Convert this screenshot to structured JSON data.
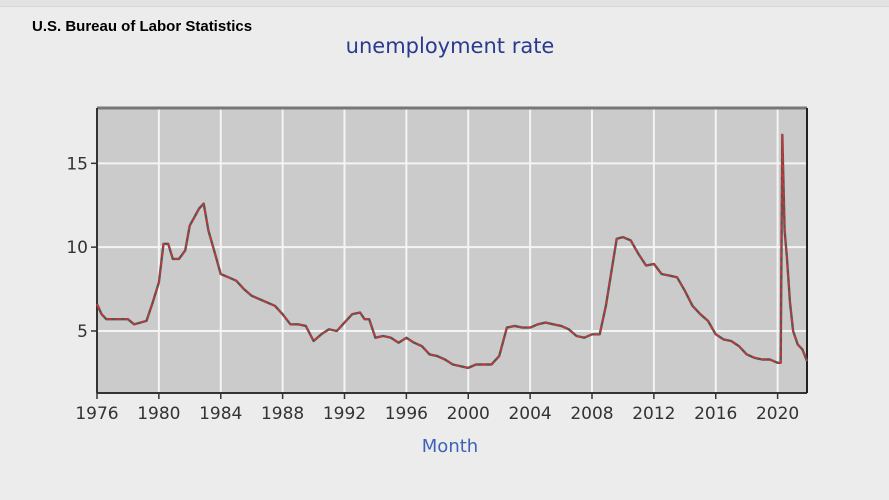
{
  "header": {
    "source": "U.S. Bureau of Labor Statistics",
    "title": "unemployment rate",
    "xlabel": "Month"
  },
  "colors": {
    "background": "#ececec",
    "plot_bg": "#cbcbcb",
    "grid": "#f4f4f4",
    "line": "#d83030",
    "line_shadow": "#555555",
    "title": "#2a3a8f",
    "xlabel": "#3d63b8"
  },
  "chart_data": {
    "type": "line",
    "title": "unemployment rate",
    "xlabel": "Month",
    "ylabel": "",
    "xlim": [
      1976,
      2021.9
    ],
    "ylim": [
      1.3,
      18.3
    ],
    "grid": true,
    "legend": null,
    "x_ticks": [
      "1976",
      "1980",
      "1984",
      "1988",
      "1992",
      "1996",
      "2000",
      "2004",
      "2008",
      "2012",
      "2016",
      "2020"
    ],
    "y_ticks": [
      "5",
      "10",
      "15"
    ],
    "series": [
      {
        "name": "unemployment rate",
        "x": [
          1976.0,
          1976.3,
          1976.6,
          1977.0,
          1977.5,
          1978.0,
          1978.4,
          1978.8,
          1979.2,
          1979.6,
          1980.0,
          1980.3,
          1980.6,
          1980.9,
          1981.3,
          1981.7,
          1982.0,
          1982.3,
          1982.6,
          1982.9,
          1983.2,
          1983.6,
          1984.0,
          1984.5,
          1985.0,
          1985.5,
          1986.0,
          1986.5,
          1987.0,
          1987.5,
          1988.0,
          1988.5,
          1989.0,
          1989.5,
          1990.0,
          1990.5,
          1991.0,
          1991.5,
          1992.0,
          1992.5,
          1993.0,
          1993.3,
          1993.6,
          1994.0,
          1994.5,
          1995.0,
          1995.5,
          1996.0,
          1996.5,
          1997.0,
          1997.5,
          1998.0,
          1998.5,
          1999.0,
          1999.5,
          2000.0,
          2000.5,
          2001.0,
          2001.5,
          2002.0,
          2002.5,
          2003.0,
          2003.5,
          2004.0,
          2004.5,
          2005.0,
          2005.5,
          2006.0,
          2006.5,
          2007.0,
          2007.5,
          2008.0,
          2008.5,
          2008.9,
          2009.3,
          2009.6,
          2010.0,
          2010.5,
          2011.0,
          2011.5,
          2012.0,
          2012.5,
          2013.0,
          2013.5,
          2014.0,
          2014.5,
          2015.0,
          2015.5,
          2016.0,
          2016.5,
          2017.0,
          2017.5,
          2018.0,
          2018.5,
          2019.0,
          2019.5,
          2020.0,
          2020.2,
          2020.3,
          2020.45,
          2020.6,
          2020.8,
          2021.0,
          2021.3,
          2021.6,
          2021.9
        ],
        "values": [
          6.6,
          6.0,
          5.7,
          5.7,
          5.7,
          5.7,
          5.4,
          5.5,
          5.6,
          6.7,
          7.9,
          10.2,
          10.2,
          9.3,
          9.3,
          9.8,
          11.3,
          11.8,
          12.3,
          12.6,
          11.0,
          9.7,
          8.4,
          8.2,
          8.0,
          7.5,
          7.1,
          6.9,
          6.7,
          6.5,
          6.0,
          5.4,
          5.4,
          5.3,
          4.4,
          4.8,
          5.1,
          5.0,
          5.5,
          6.0,
          6.1,
          5.7,
          5.7,
          4.6,
          4.7,
          4.6,
          4.3,
          4.6,
          4.3,
          4.1,
          3.6,
          3.5,
          3.3,
          3.0,
          2.9,
          2.8,
          3.0,
          3.0,
          3.0,
          3.5,
          5.2,
          5.3,
          5.2,
          5.2,
          5.4,
          5.5,
          5.4,
          5.3,
          5.1,
          4.7,
          4.6,
          4.8,
          4.8,
          6.5,
          8.8,
          10.5,
          10.6,
          10.4,
          9.6,
          8.9,
          9.0,
          8.4,
          8.3,
          8.2,
          7.4,
          6.5,
          6.0,
          5.6,
          4.8,
          4.5,
          4.4,
          4.1,
          3.6,
          3.4,
          3.3,
          3.3,
          3.1,
          3.1,
          16.7,
          11.0,
          9.4,
          6.7,
          5.0,
          4.2,
          3.9,
          3.2
        ]
      }
    ]
  }
}
